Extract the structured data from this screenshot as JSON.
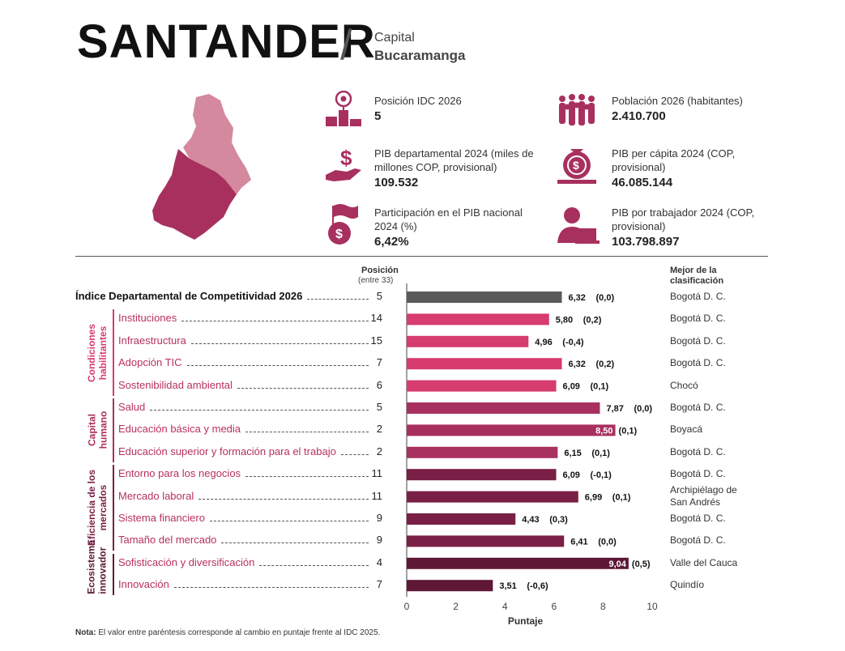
{
  "header": {
    "title": "SANTANDER",
    "slash": "/",
    "capital_label": "Capital",
    "capital_city": "Bucaramanga"
  },
  "stats": [
    {
      "label": "Posición IDC 2026",
      "value": "5",
      "icon": "podium-icon"
    },
    {
      "label": "Población 2026 (habitantes)",
      "value": "2.410.700",
      "icon": "crowd-icon"
    },
    {
      "label": "PIB departamental 2024  (miles de millones COP, provisional)",
      "value": "109.532",
      "icon": "money-hand-icon"
    },
    {
      "label": "PIB per cápita 2024 (COP, provisional)",
      "value": "46.085.144",
      "icon": "money-bag-icon"
    },
    {
      "label": "Participación en el PIB nacional 2024 (%)",
      "value": "6,42%",
      "icon": "flag-coin-icon"
    },
    {
      "label": "PIB por trabajador 2024 (COP, provisional)",
      "value": "103.798.897",
      "icon": "worker-laptop-icon"
    }
  ],
  "colors": {
    "index": "#5a5a5a",
    "condiciones": "#d63c6e",
    "capital_humano": "#a8305f",
    "eficiencia": "#7a1f45",
    "ecosistema": "#5e1836",
    "map_main": "#a8305f",
    "map_light": "#d9889f"
  },
  "chart_headers": {
    "position": "Posición",
    "position_sub": "(entre 33)",
    "best": "Mejor de la clasificación"
  },
  "groups": [
    {
      "name": "Condiciones habilitantes",
      "color": "#d63c6e"
    },
    {
      "name": "Capital humano",
      "color": "#a8305f"
    },
    {
      "name": "Eficiencia de los mercados",
      "color": "#7a1f45"
    },
    {
      "name": "Ecosistema innovador",
      "color": "#5e1836"
    }
  ],
  "chart_data": {
    "type": "bar",
    "orientation": "horizontal",
    "xlabel": "Puntaje",
    "xlim": [
      0,
      10
    ],
    "xticks": [
      "0",
      "2",
      "4",
      "6",
      "8",
      "10"
    ],
    "rows": [
      {
        "label": "Índice Departamental de Competitividad 2026",
        "position": "5",
        "score": 6.32,
        "score_label": "6,32",
        "change": "(0,0)",
        "best": "Bogotá D. C.",
        "group": "index"
      },
      {
        "label": "Instituciones",
        "position": "14",
        "score": 5.8,
        "score_label": "5,80",
        "change": "(0,2)",
        "best": "Bogotá D. C.",
        "group": "condiciones"
      },
      {
        "label": "Infraestructura",
        "position": "15",
        "score": 4.96,
        "score_label": "4,96",
        "change": "(-0,4)",
        "best": "Bogotá D. C.",
        "group": "condiciones"
      },
      {
        "label": "Adopción TIC",
        "position": "7",
        "score": 6.32,
        "score_label": "6,32",
        "change": "(0,2)",
        "best": "Bogotá D. C.",
        "group": "condiciones"
      },
      {
        "label": "Sostenibilidad ambiental",
        "position": "6",
        "score": 6.09,
        "score_label": "6,09",
        "change": "(0,1)",
        "best": "Chocó",
        "group": "condiciones"
      },
      {
        "label": "Salud",
        "position": "5",
        "score": 7.87,
        "score_label": "7,87",
        "change": "(0,0)",
        "best": "Bogotá D. C.",
        "group": "capital_humano"
      },
      {
        "label": "Educación básica y media",
        "position": "2",
        "score": 8.5,
        "score_label": "8,50",
        "change": "(0,1)",
        "best": "Boyacá",
        "group": "capital_humano"
      },
      {
        "label": "Educación superior y formación para el trabajo",
        "position": "2",
        "score": 6.15,
        "score_label": "6,15",
        "change": "(0,1)",
        "best": "Bogotá D. C.",
        "group": "capital_humano"
      },
      {
        "label": "Entorno para los negocios",
        "position": "11",
        "score": 6.09,
        "score_label": "6,09",
        "change": "(-0,1)",
        "best": "Bogotá D. C.",
        "group": "eficiencia"
      },
      {
        "label": "Mercado laboral",
        "position": "11",
        "score": 6.99,
        "score_label": "6,99",
        "change": "(0,1)",
        "best": "Archipiélago de San Andrés",
        "group": "eficiencia"
      },
      {
        "label": "Sistema financiero",
        "position": "9",
        "score": 4.43,
        "score_label": "4,43",
        "change": "(0,3)",
        "best": "Bogotá D. C.",
        "group": "eficiencia"
      },
      {
        "label": "Tamaño del mercado",
        "position": "9",
        "score": 6.41,
        "score_label": "6,41",
        "change": "(0,0)",
        "best": "Bogotá D. C.",
        "group": "eficiencia"
      },
      {
        "label": "Sofisticación y diversificación",
        "position": "4",
        "score": 9.04,
        "score_label": "9,04",
        "change": "(0,5)",
        "best": "Valle del Cauca",
        "group": "ecosistema"
      },
      {
        "label": "Innovación",
        "position": "7",
        "score": 3.51,
        "score_label": "3,51",
        "change": "(-0,6)",
        "best": "Quindío",
        "group": "ecosistema"
      }
    ]
  },
  "note": {
    "prefix": "Nota:",
    "text": " El valor entre paréntesis corresponde al cambio en puntaje frente al IDC 2025."
  }
}
